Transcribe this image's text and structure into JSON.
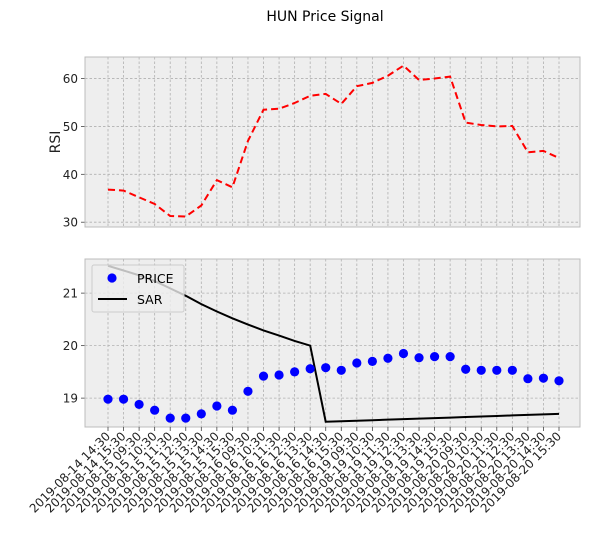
{
  "chart_data": {
    "title": "HUN Price Signal",
    "x_labels": [
      "2019-08-14 14:30",
      "2019-08-14 15:30",
      "2019-08-15 09:30",
      "2019-08-15 10:30",
      "2019-08-15 11:30",
      "2019-08-15 12:30",
      "2019-08-15 13:30",
      "2019-08-15 14:30",
      "2019-08-15 15:30",
      "2019-08-16 09:30",
      "2019-08-16 10:30",
      "2019-08-16 11:30",
      "2019-08-16 12:30",
      "2019-08-16 13:30",
      "2019-08-16 14:30",
      "2019-08-16 15:30",
      "2019-08-19 09:30",
      "2019-08-19 10:30",
      "2019-08-19 11:30",
      "2019-08-19 12:30",
      "2019-08-19 13:30",
      "2019-08-19 14:30",
      "2019-08-19 15:30",
      "2019-08-20 09:30",
      "2019-08-20 10:30",
      "2019-08-20 11:30",
      "2019-08-20 12:30",
      "2019-08-20 13:30",
      "2019-08-20 14:30",
      "2019-08-20 15:30"
    ],
    "panels": [
      {
        "type": "line",
        "ylabel": "RSI",
        "ylim": [
          29,
          64.5
        ],
        "yticks": [
          30,
          40,
          50,
          60
        ],
        "grid": true,
        "series": [
          {
            "color": "#ff0000",
            "style": "dashed",
            "values": [
              36.8,
              36.6,
              35.2,
              33.8,
              31.3,
              31.2,
              33.5,
              38.8,
              37.3,
              47.0,
              53.5,
              53.7,
              54.9,
              56.4,
              56.8,
              54.7,
              58.4,
              59.1,
              60.6,
              62.7,
              59.7,
              60.0,
              60.4,
              50.8,
              50.3,
              50.0,
              50.1,
              44.6,
              44.9,
              43.4
            ]
          }
        ]
      },
      {
        "type": "scatter+line",
        "ylim": [
          18.45,
          21.65
        ],
        "yticks": [
          19,
          20,
          21
        ],
        "grid": true,
        "legend": "upper-left",
        "series": [
          {
            "name": "PRICE",
            "kind": "scatter",
            "color": "#0000ff",
            "values": [
              18.98,
              18.98,
              18.88,
              18.77,
              18.62,
              18.62,
              18.7,
              18.85,
              18.77,
              19.13,
              19.42,
              19.44,
              19.5,
              19.56,
              19.58,
              19.53,
              19.67,
              19.7,
              19.76,
              19.85,
              19.77,
              19.79,
              19.79,
              19.55,
              19.53,
              19.53,
              19.53,
              19.37,
              19.38,
              19.33
            ]
          },
          {
            "name": "SAR",
            "kind": "line",
            "color": "#000000",
            "values": [
              21.52,
              21.43,
              21.34,
              21.23,
              21.09,
              20.95,
              20.79,
              20.65,
              20.52,
              20.4,
              20.29,
              20.19,
              20.09,
              20.0,
              18.55,
              18.56,
              18.57,
              18.58,
              18.59,
              18.6,
              18.61,
              18.62,
              18.63,
              18.64,
              18.65,
              18.66,
              18.67,
              18.68,
              18.69,
              18.7
            ],
            "x_start_index": 0,
            "note_points_index_offset": 0
          }
        ]
      }
    ]
  }
}
